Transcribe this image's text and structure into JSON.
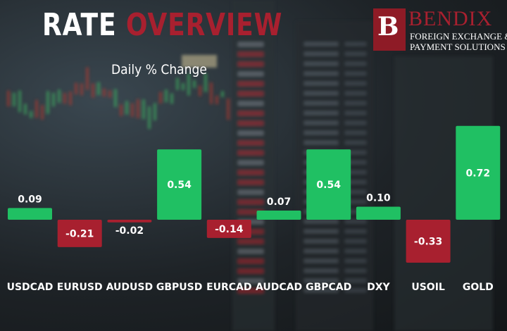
{
  "header": {
    "title_part1": "RATE",
    "title_part2": "OVERVIEW",
    "subtitle": "Daily % Change"
  },
  "brand": {
    "logo_letter": "B",
    "name": "BENDIX",
    "tagline_line1": "FOREIGN EXCHANGE &",
    "tagline_line2": "PAYMENT SOLUTIONS"
  },
  "colors": {
    "positive": "#20c063",
    "negative": "#a8202f",
    "title_accent": "#a8202f"
  },
  "chart_data": {
    "type": "bar",
    "title": "RATE OVERVIEW",
    "subtitle": "Daily % Change",
    "categories": [
      "USDCAD",
      "EURUSD",
      "AUDUSD",
      "GBPUSD",
      "EURCAD",
      "AUDCAD",
      "GBPCAD",
      "DXY",
      "USOIL",
      "GOLD"
    ],
    "values": [
      0.09,
      -0.21,
      -0.02,
      0.54,
      -0.14,
      0.07,
      0.54,
      0.1,
      -0.33,
      0.72
    ],
    "labels": [
      "0.09",
      "-0.21",
      "-0.02",
      "0.54",
      "-0.14",
      "0.07",
      "0.54",
      "0.10",
      "-0.33",
      "0.72"
    ],
    "grid": false,
    "legend": "none"
  }
}
